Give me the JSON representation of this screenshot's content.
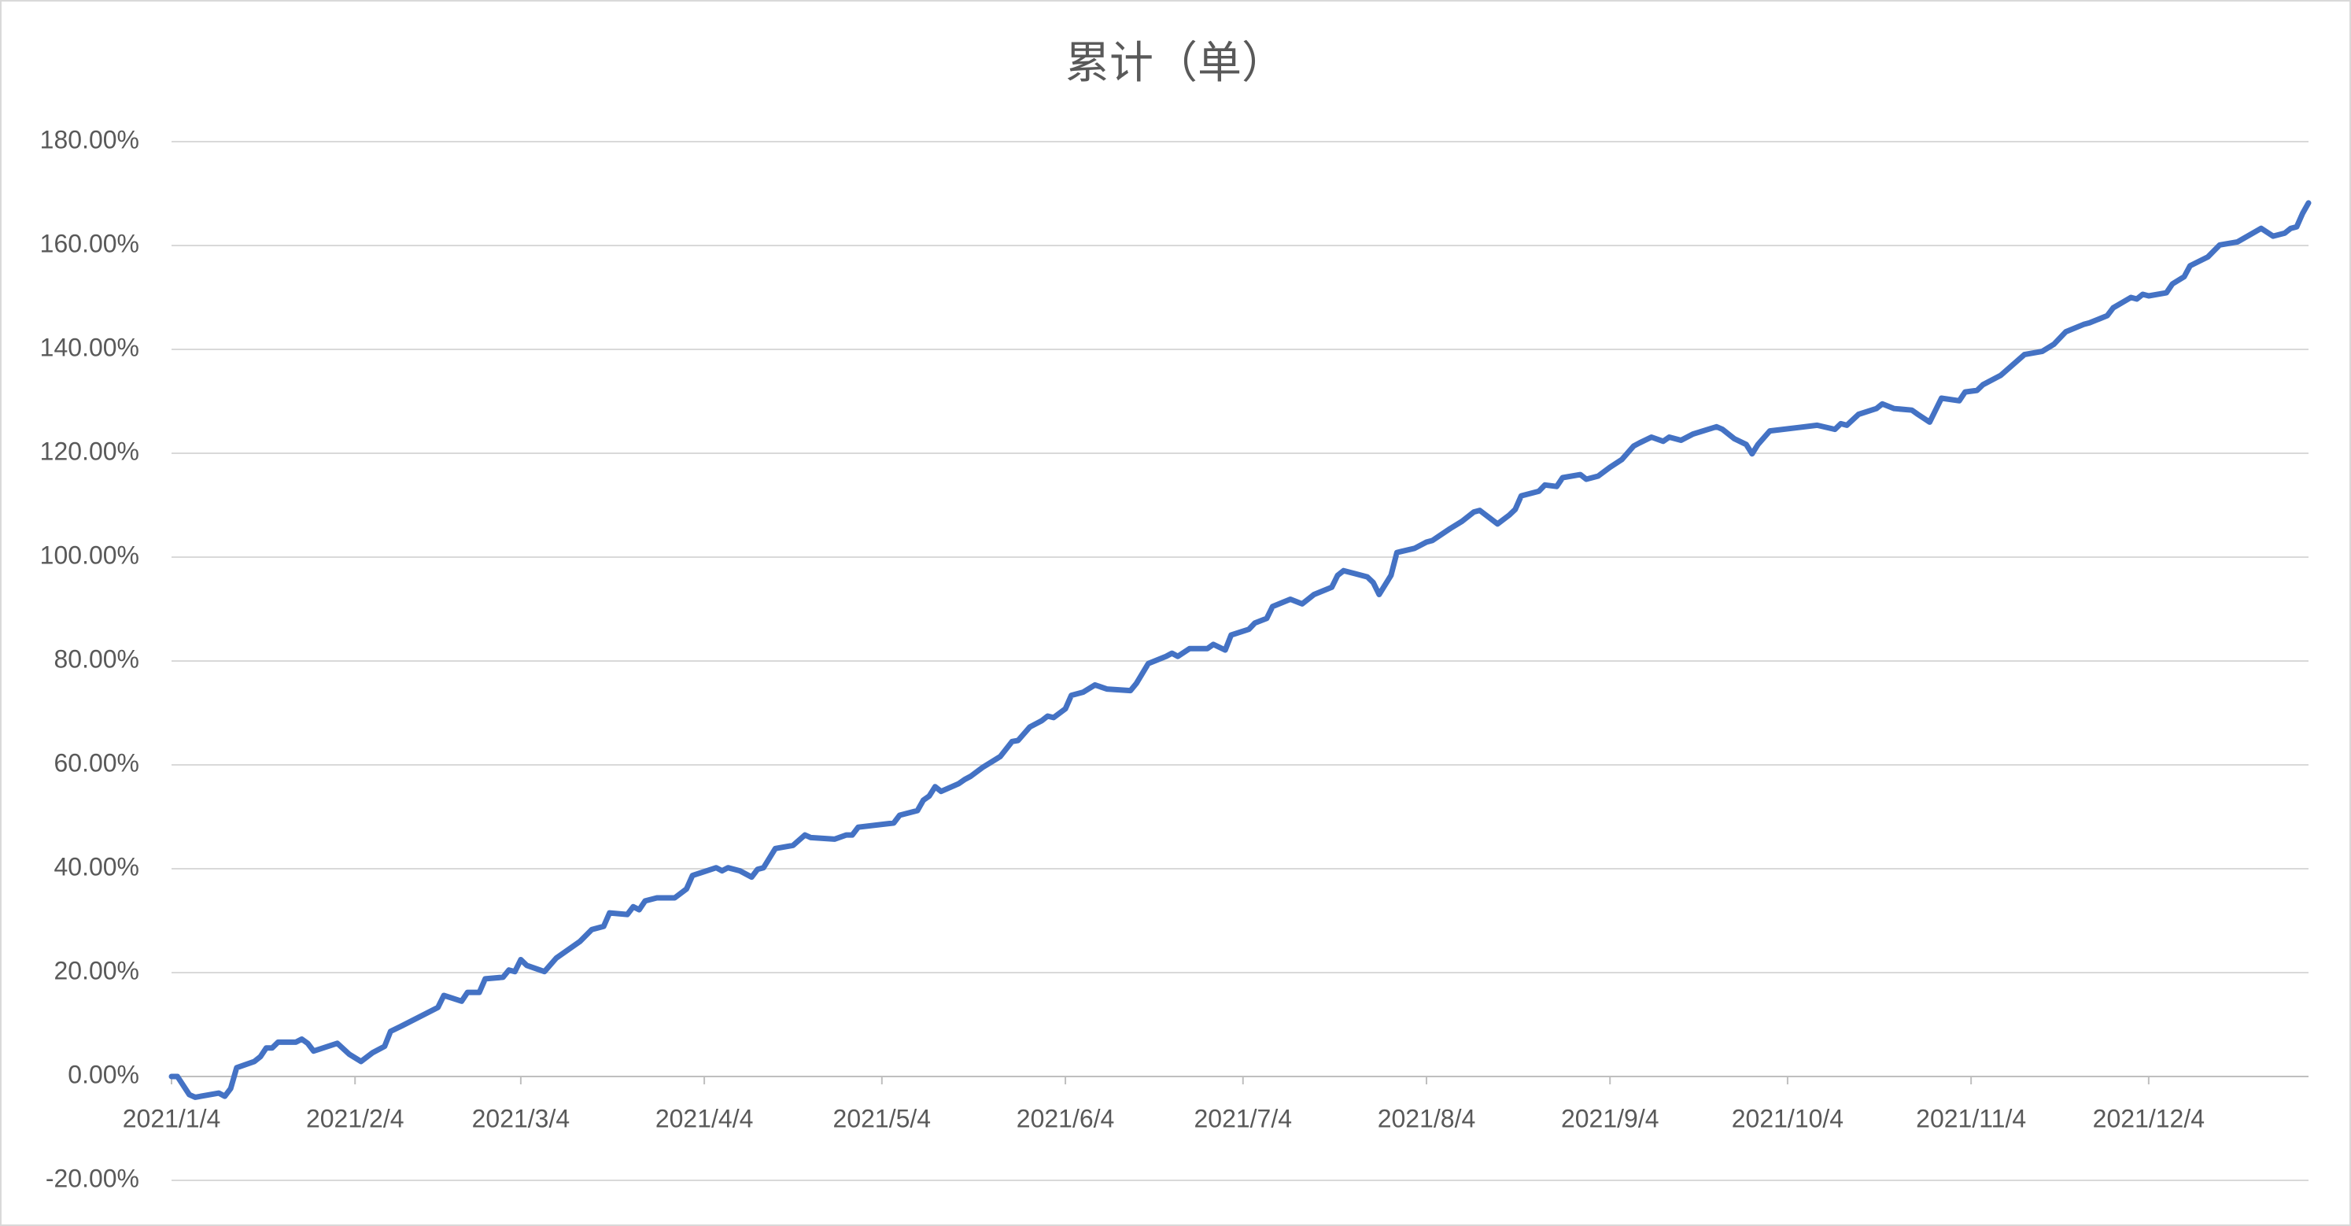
{
  "chart_data": {
    "type": "line",
    "title": "累计（单）",
    "x": [
      "2021/1/4",
      "2021/1/5",
      "2021/1/7",
      "2021/1/8",
      "2021/1/12",
      "2021/1/13",
      "2021/1/14",
      "2021/1/15",
      "2021/1/18",
      "2021/1/19",
      "2021/1/20",
      "2021/1/21",
      "2021/1/22",
      "2021/1/25",
      "2021/1/26",
      "2021/1/27",
      "2021/1/28",
      "2021/2/1",
      "2021/2/3",
      "2021/2/5",
      "2021/2/7",
      "2021/2/9",
      "2021/2/10",
      "2021/2/12",
      "2021/2/18",
      "2021/2/19",
      "2021/2/22",
      "2021/2/23",
      "2021/2/25",
      "2021/2/26",
      "2021/3/1",
      "2021/3/2",
      "2021/3/3",
      "2021/3/4",
      "2021/3/5",
      "2021/3/8",
      "2021/3/10",
      "2021/3/14",
      "2021/3/16",
      "2021/3/18",
      "2021/3/19",
      "2021/3/22",
      "2021/3/23",
      "2021/3/24",
      "2021/3/25",
      "2021/3/27",
      "2021/3/30",
      "2021/4/1",
      "2021/4/2",
      "2021/4/6",
      "2021/4/7",
      "2021/4/8",
      "2021/4/10",
      "2021/4/12",
      "2021/4/13",
      "2021/4/14",
      "2021/4/16",
      "2021/4/19",
      "2021/4/21",
      "2021/4/22",
      "2021/4/26",
      "2021/4/28",
      "2021/4/29",
      "2021/4/30",
      "2021/5/6",
      "2021/5/7",
      "2021/5/10",
      "2021/5/11",
      "2021/5/12",
      "2021/5/13",
      "2021/5/14",
      "2021/5/17",
      "2021/5/18",
      "2021/5/19",
      "2021/5/21",
      "2021/5/24",
      "2021/5/26",
      "2021/5/27",
      "2021/5/29",
      "2021/5/31",
      "2021/6/1",
      "2021/6/2",
      "2021/6/4",
      "2021/6/5",
      "2021/6/7",
      "2021/6/9",
      "2021/6/11",
      "2021/6/15",
      "2021/6/16",
      "2021/6/18",
      "2021/6/21",
      "2021/6/22",
      "2021/6/23",
      "2021/6/25",
      "2021/6/28",
      "2021/6/29",
      "2021/7/1",
      "2021/7/2",
      "2021/7/5",
      "2021/7/6",
      "2021/7/8",
      "2021/7/9",
      "2021/7/12",
      "2021/7/14",
      "2021/7/15",
      "2021/7/16",
      "2021/7/19",
      "2021/7/20",
      "2021/7/21",
      "2021/7/23",
      "2021/7/25",
      "2021/7/26",
      "2021/7/27",
      "2021/7/29",
      "2021/7/30",
      "2021/8/2",
      "2021/8/4",
      "2021/8/5",
      "2021/8/8",
      "2021/8/10",
      "2021/8/12",
      "2021/8/13",
      "2021/8/16",
      "2021/8/18",
      "2021/8/19",
      "2021/8/20",
      "2021/8/23",
      "2021/8/24",
      "2021/8/26",
      "2021/8/27",
      "2021/8/30",
      "2021/8/31",
      "2021/9/2",
      "2021/9/4",
      "2021/9/6",
      "2021/9/8",
      "2021/9/9",
      "2021/9/11",
      "2021/9/13",
      "2021/9/14",
      "2021/9/16",
      "2021/9/18",
      "2021/9/22",
      "2021/9/23",
      "2021/9/25",
      "2021/9/27",
      "2021/9/28",
      "2021/9/29",
      "2021/10/1",
      "2021/10/9",
      "2021/10/12",
      "2021/10/13",
      "2021/10/14",
      "2021/10/16",
      "2021/10/19",
      "2021/10/20",
      "2021/10/22",
      "2021/10/25",
      "2021/10/26",
      "2021/10/28",
      "2021/10/30",
      "2021/11/2",
      "2021/11/3",
      "2021/11/5",
      "2021/11/6",
      "2021/11/9",
      "2021/11/13",
      "2021/11/16",
      "2021/11/18",
      "2021/11/20",
      "2021/11/23",
      "2021/11/24",
      "2021/11/27",
      "2021/11/28",
      "2021/12/1",
      "2021/12/2",
      "2021/12/3",
      "2021/12/4",
      "2021/12/7",
      "2021/12/8",
      "2021/12/10",
      "2021/12/11",
      "2021/12/14",
      "2021/12/16",
      "2021/12/19",
      "2021/12/23",
      "2021/12/25",
      "2021/12/27",
      "2021/12/28",
      "2021/12/29",
      "2021/12/30",
      "2021/12/31"
    ],
    "values": [
      0,
      0,
      -3.5,
      -4.0,
      -3.2,
      -3.8,
      -2.3,
      1.7,
      2.9,
      3.8,
      5.5,
      5.5,
      6.6,
      6.6,
      7.2,
      6.4,
      4.9,
      6.4,
      4.3,
      2.9,
      4.6,
      5.8,
      8.7,
      9.8,
      13.3,
      15.6,
      14.5,
      16.2,
      16.2,
      18.8,
      19.1,
      20.5,
      20.2,
      22.5,
      21.4,
      20.2,
      22.8,
      26.0,
      28.3,
      28.9,
      31.5,
      31.2,
      32.7,
      32.1,
      33.8,
      34.4,
      34.4,
      36.1,
      38.7,
      40.2,
      39.6,
      40.2,
      39.6,
      38.4,
      39.9,
      40.2,
      43.9,
      44.5,
      46.5,
      46.0,
      45.7,
      46.5,
      46.5,
      48.0,
      48.8,
      50.3,
      51.2,
      53.2,
      54.0,
      55.8,
      54.9,
      56.4,
      57.2,
      57.8,
      59.5,
      61.6,
      64.5,
      64.7,
      67.3,
      68.5,
      69.4,
      69.1,
      70.8,
      73.4,
      74.0,
      75.4,
      74.6,
      74.3,
      75.7,
      79.5,
      80.9,
      81.5,
      80.9,
      82.4,
      82.4,
      83.2,
      82.1,
      85.0,
      86.1,
      87.3,
      88.2,
      90.5,
      91.9,
      91.0,
      91.9,
      92.8,
      94.2,
      96.5,
      97.4,
      96.8,
      96.2,
      95.1,
      92.8,
      96.5,
      100.9,
      101.7,
      102.9,
      103.2,
      105.5,
      106.9,
      108.7,
      109.0,
      106.4,
      108.1,
      109.2,
      111.8,
      112.7,
      113.9,
      113.6,
      115.3,
      115.9,
      115.0,
      115.6,
      117.3,
      118.8,
      121.4,
      122.0,
      123.1,
      122.3,
      123.1,
      122.5,
      123.7,
      125.1,
      124.6,
      122.8,
      121.7,
      119.9,
      121.7,
      124.3,
      125.4,
      124.6,
      125.7,
      125.4,
      127.5,
      128.6,
      129.5,
      128.6,
      128.3,
      127.5,
      126.0,
      130.6,
      130.1,
      131.8,
      132.1,
      133.2,
      135.0,
      139.0,
      139.6,
      141.0,
      143.4,
      144.8,
      145.1,
      146.5,
      148.0,
      150.0,
      149.7,
      150.6,
      150.3,
      150.9,
      152.6,
      154.0,
      156.1,
      157.8,
      160.1,
      160.7,
      163.3,
      161.8,
      162.4,
      163.3,
      163.6,
      166.2,
      168.2
    ],
    "color": "#4472c4",
    "xlim": [
      "2021/1/4",
      "2021/12/31"
    ],
    "xticks": [
      "2021/1/4",
      "2021/2/4",
      "2021/3/4",
      "2021/4/4",
      "2021/5/4",
      "2021/6/4",
      "2021/7/4",
      "2021/8/4",
      "2021/9/4",
      "2021/10/4",
      "2021/11/4",
      "2021/12/4"
    ],
    "ylim": [
      -20,
      180
    ],
    "yticks": [
      {
        "value": -20,
        "label": "-20.00%"
      },
      {
        "value": 0,
        "label": "0.00%"
      },
      {
        "value": 20,
        "label": "20.00%"
      },
      {
        "value": 40,
        "label": "40.00%"
      },
      {
        "value": 60,
        "label": "60.00%"
      },
      {
        "value": 80,
        "label": "80.00%"
      },
      {
        "value": 100,
        "label": "100.00%"
      },
      {
        "value": 120,
        "label": "120.00%"
      },
      {
        "value": 140,
        "label": "140.00%"
      },
      {
        "value": 160,
        "label": "160.00%"
      },
      {
        "value": 180,
        "label": "180.00%"
      }
    ],
    "grid": true
  }
}
